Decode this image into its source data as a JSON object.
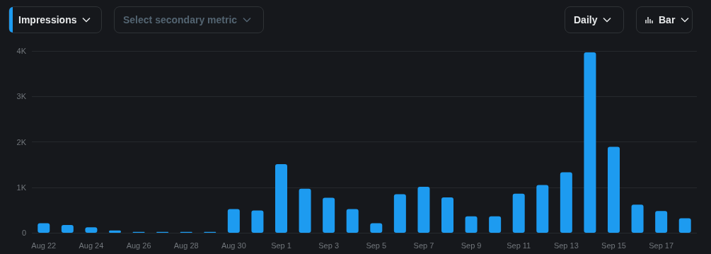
{
  "chart_data": {
    "type": "bar",
    "annotations": [
      "Impressions",
      "Select secondary metric",
      "Daily",
      "Bar"
    ],
    "categories": [
      "Aug 22",
      null,
      "Aug 24",
      null,
      "Aug 26",
      null,
      "Aug 28",
      null,
      "Aug 30",
      null,
      "Sep 1",
      null,
      "Sep 3",
      null,
      "Sep 5",
      null,
      "Sep 7",
      null,
      "Sep 9",
      null,
      "Sep 11",
      null,
      "Sep 13",
      null,
      "Sep 15",
      null,
      "Sep 17",
      null
    ],
    "values": [
      210,
      170,
      120,
      50,
      20,
      20,
      20,
      20,
      520,
      490,
      1510,
      970,
      770,
      520,
      210,
      850,
      1010,
      780,
      360,
      360,
      860,
      1050,
      1330,
      3970,
      1890,
      620,
      480,
      320
    ],
    "color": "#1d9bf0",
    "ylim": [
      0,
      4000
    ],
    "yticks": [
      0,
      {
        "value": 1000,
        "label": "1K"
      },
      {
        "value": 2000,
        "label": "2K"
      },
      {
        "value": 3000,
        "label": "3K"
      },
      {
        "value": 4000,
        "label": "4K"
      }
    ],
    "grid": "y"
  }
}
